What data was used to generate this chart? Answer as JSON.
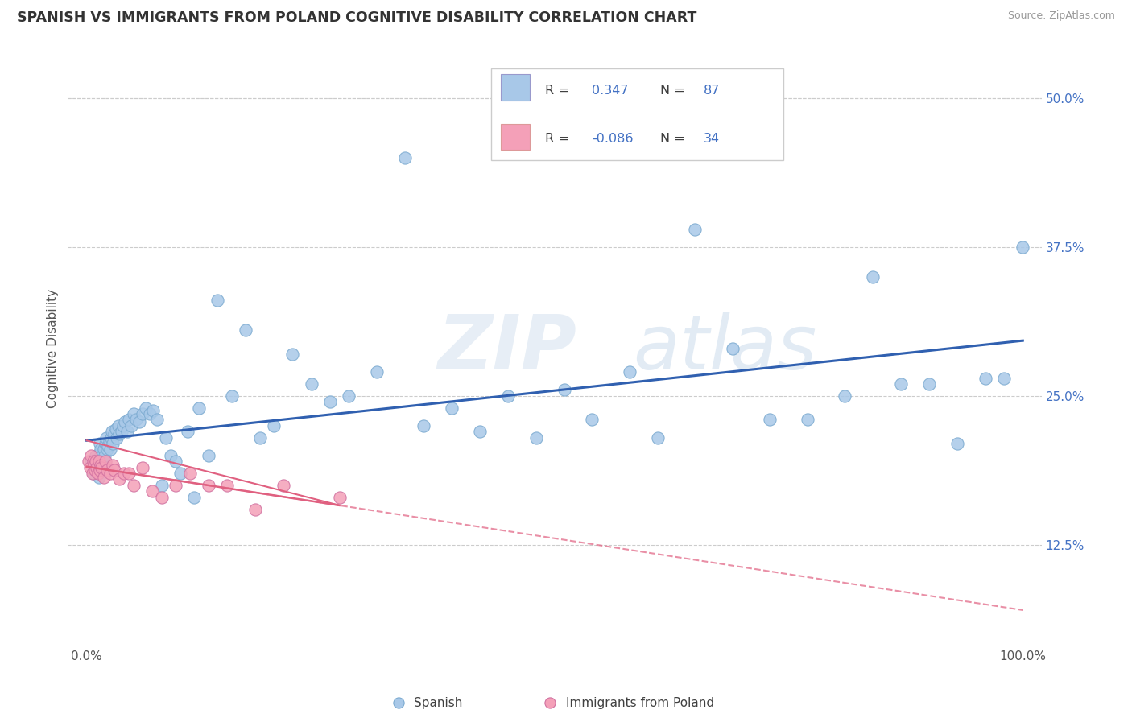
{
  "title": "SPANISH VS IMMIGRANTS FROM POLAND COGNITIVE DISABILITY CORRELATION CHART",
  "source": "Source: ZipAtlas.com",
  "ylabel": "Cognitive Disability",
  "xlim": [
    -0.02,
    1.02
  ],
  "ylim": [
    0.04,
    0.54
  ],
  "yticks": [
    0.125,
    0.25,
    0.375,
    0.5
  ],
  "ytick_labels": [
    "12.5%",
    "25.0%",
    "37.5%",
    "50.0%"
  ],
  "xticks": [
    0.0,
    1.0
  ],
  "xtick_labels": [
    "0.0%",
    "100.0%"
  ],
  "color_spanish": "#a8c8e8",
  "color_polish": "#f4a0b8",
  "color_spanish_line": "#3060b0",
  "color_polish_line": "#e06080",
  "color_blue_text": "#4472c4",
  "color_dark_text": "#404040",
  "color_gray_text": "#888888",
  "background_color": "#ffffff",
  "title_fontsize": 12.5,
  "axis_label_fontsize": 11,
  "tick_fontsize": 11,
  "sp_x": [
    0.005,
    0.007,
    0.008,
    0.009,
    0.01,
    0.01,
    0.011,
    0.012,
    0.013,
    0.013,
    0.014,
    0.015,
    0.015,
    0.016,
    0.017,
    0.018,
    0.018,
    0.019,
    0.02,
    0.021,
    0.022,
    0.023,
    0.024,
    0.025,
    0.026,
    0.027,
    0.028,
    0.03,
    0.031,
    0.032,
    0.034,
    0.035,
    0.037,
    0.039,
    0.041,
    0.043,
    0.045,
    0.048,
    0.05,
    0.053,
    0.056,
    0.06,
    0.063,
    0.067,
    0.071,
    0.075,
    0.08,
    0.085,
    0.09,
    0.095,
    0.1,
    0.108,
    0.115,
    0.12,
    0.13,
    0.14,
    0.155,
    0.17,
    0.185,
    0.2,
    0.22,
    0.24,
    0.26,
    0.28,
    0.31,
    0.34,
    0.36,
    0.39,
    0.42,
    0.45,
    0.48,
    0.51,
    0.54,
    0.58,
    0.61,
    0.65,
    0.69,
    0.73,
    0.77,
    0.81,
    0.84,
    0.87,
    0.9,
    0.93,
    0.96,
    0.98,
    1.0
  ],
  "sp_y": [
    0.195,
    0.185,
    0.19,
    0.188,
    0.192,
    0.2,
    0.196,
    0.188,
    0.182,
    0.198,
    0.21,
    0.205,
    0.195,
    0.192,
    0.2,
    0.205,
    0.195,
    0.2,
    0.21,
    0.215,
    0.205,
    0.208,
    0.212,
    0.205,
    0.215,
    0.22,
    0.21,
    0.218,
    0.222,
    0.215,
    0.225,
    0.218,
    0.22,
    0.225,
    0.228,
    0.22,
    0.23,
    0.225,
    0.235,
    0.23,
    0.228,
    0.235,
    0.24,
    0.235,
    0.238,
    0.23,
    0.175,
    0.215,
    0.2,
    0.195,
    0.185,
    0.22,
    0.165,
    0.24,
    0.2,
    0.33,
    0.25,
    0.305,
    0.215,
    0.225,
    0.285,
    0.26,
    0.245,
    0.25,
    0.27,
    0.45,
    0.225,
    0.24,
    0.22,
    0.25,
    0.215,
    0.255,
    0.23,
    0.27,
    0.215,
    0.39,
    0.29,
    0.23,
    0.23,
    0.25,
    0.35,
    0.26,
    0.26,
    0.21,
    0.265,
    0.265,
    0.375
  ],
  "pl_x": [
    0.002,
    0.004,
    0.005,
    0.006,
    0.007,
    0.008,
    0.009,
    0.01,
    0.011,
    0.012,
    0.013,
    0.014,
    0.015,
    0.016,
    0.018,
    0.02,
    0.022,
    0.025,
    0.028,
    0.03,
    0.035,
    0.04,
    0.045,
    0.05,
    0.06,
    0.07,
    0.08,
    0.095,
    0.11,
    0.13,
    0.15,
    0.18,
    0.21,
    0.27
  ],
  "pl_y": [
    0.195,
    0.19,
    0.2,
    0.185,
    0.195,
    0.192,
    0.188,
    0.195,
    0.19,
    0.185,
    0.195,
    0.188,
    0.192,
    0.19,
    0.182,
    0.195,
    0.188,
    0.185,
    0.192,
    0.188,
    0.18,
    0.185,
    0.185,
    0.175,
    0.19,
    0.17,
    0.165,
    0.175,
    0.185,
    0.175,
    0.175,
    0.155,
    0.175,
    0.165
  ]
}
